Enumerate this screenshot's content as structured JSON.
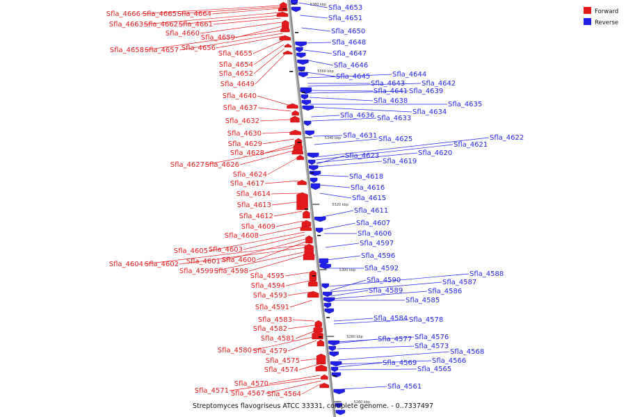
{
  "caption": "Streptomyces flavogriseus ATCC 33331, complete genome. - 0..7337497",
  "legend": [
    {
      "label": "Forward",
      "color": "#e31a1c"
    },
    {
      "label": "Reverse",
      "color": "#1f1fe8"
    }
  ],
  "ticks": [
    "5380 kbp",
    "5360 kbp",
    "5340 kbp",
    "5320 kbp",
    "5300 kbp",
    "5280 kbp",
    "5260 kbp"
  ],
  "forward_labels": [
    "Sfla_4666",
    "Sfla_4665",
    "Sfla_4664",
    "Sfla_4663",
    "Sfla_4662",
    "Sfla_4661",
    "Sfla_4660",
    "Sfla_4659",
    "Sfla_4658",
    "Sfla_4657",
    "Sfla_4656",
    "Sfla_4655",
    "Sfla_4654",
    "Sfla_4652",
    "Sfla_4649",
    "Sfla_4640",
    "Sfla_4637",
    "Sfla_4632",
    "Sfla_4630",
    "Sfla_4629",
    "Sfla_4628",
    "Sfla_4627",
    "Sfla_4626",
    "Sfla_4624",
    "Sfla_4617",
    "Sfla_4614",
    "Sfla_4613",
    "Sfla_4612",
    "Sfla_4609",
    "Sfla_4608",
    "Sfla_4605",
    "Sfla_4603",
    "Sfla_4601",
    "Sfla_4600",
    "Sfla_4604",
    "Sfla_4602",
    "Sfla_4599",
    "Sfla_4598",
    "Sfla_4595",
    "Sfla_4594",
    "Sfla_4593",
    "Sfla_4591",
    "Sfla_4583",
    "Sfla_4582",
    "Sfla_4581",
    "Sfla_4580",
    "Sfla_4579",
    "Sfla_4575",
    "Sfla_4574",
    "Sfla_4570",
    "Sfla_4571",
    "Sfla_4567",
    "Sfla_4564"
  ],
  "reverse_labels": [
    "Sfla_4653",
    "Sfla_4651",
    "Sfla_4650",
    "Sfla_4648",
    "Sfla_4647",
    "Sfla_4646",
    "Sfla_4645",
    "Sfla_4644",
    "Sfla_4643",
    "Sfla_4642",
    "Sfla_4641",
    "Sfla_4639",
    "Sfla_4638",
    "Sfla_4635",
    "Sfla_4634",
    "Sfla_4636",
    "Sfla_4633",
    "Sfla_4631",
    "Sfla_4625",
    "Sfla_4622",
    "Sfla_4621",
    "Sfla_4620",
    "Sfla_4623",
    "Sfla_4619",
    "Sfla_4618",
    "Sfla_4616",
    "Sfla_4615",
    "Sfla_4611",
    "Sfla_4607",
    "Sfla_4606",
    "Sfla_4597",
    "Sfla_4596",
    "Sfla_4592",
    "Sfla_4588",
    "Sfla_4590",
    "Sfla_4587",
    "Sfla_4589",
    "Sfla_4586",
    "Sfla_4585",
    "Sfla_4584",
    "Sfla_4578",
    "Sfla_4576",
    "Sfla_4577",
    "Sfla_4573",
    "Sfla_4568",
    "Sfla_4566",
    "Sfla_4569",
    "Sfla_4565",
    "Sfla_4561"
  ]
}
